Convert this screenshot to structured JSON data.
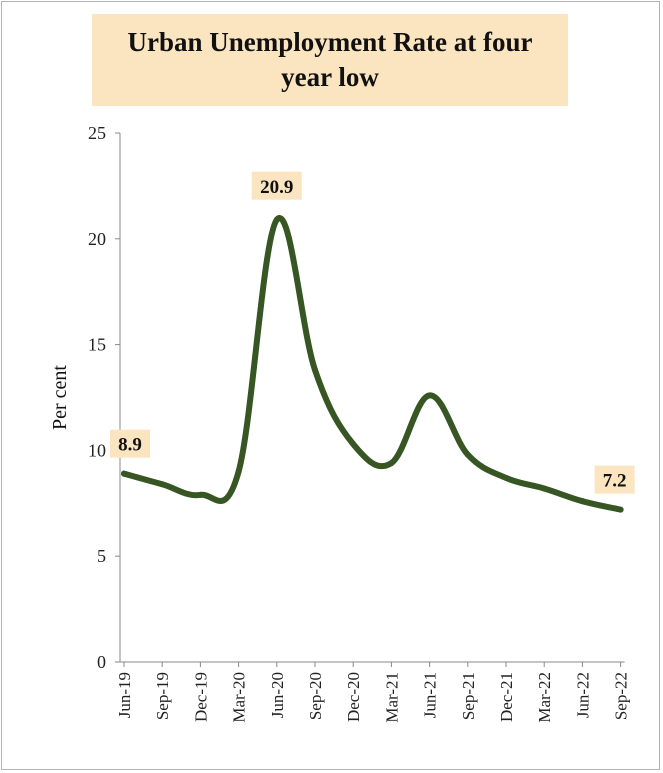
{
  "chart_data": {
    "type": "line",
    "title": "Urban Unemployment Rate at four year low",
    "ylabel": "Per cent",
    "ylim": [
      0,
      25
    ],
    "yticks": [
      "0",
      "5",
      "10",
      "15",
      "20",
      "25"
    ],
    "categories": [
      "Jun-19",
      "Sep-19",
      "Dec-19",
      "Mar-20",
      "Jun-20",
      "Sep-20",
      "Dec-20",
      "Mar-21",
      "Jun-21",
      "Sep-21",
      "Dec-21",
      "Mar-22",
      "Jun-22",
      "Sep-22"
    ],
    "values": [
      8.9,
      8.4,
      7.9,
      9.0,
      20.9,
      13.8,
      10.3,
      9.4,
      12.6,
      9.8,
      8.7,
      8.2,
      7.6,
      7.2
    ],
    "series_color": "#375623",
    "data_labels": [
      {
        "index": 0,
        "text": "8.9"
      },
      {
        "index": 4,
        "text": "20.9"
      },
      {
        "index": 13,
        "text": "7.2"
      }
    ],
    "label_bg": "#fbe5c1",
    "grid": false,
    "legend": "none"
  }
}
